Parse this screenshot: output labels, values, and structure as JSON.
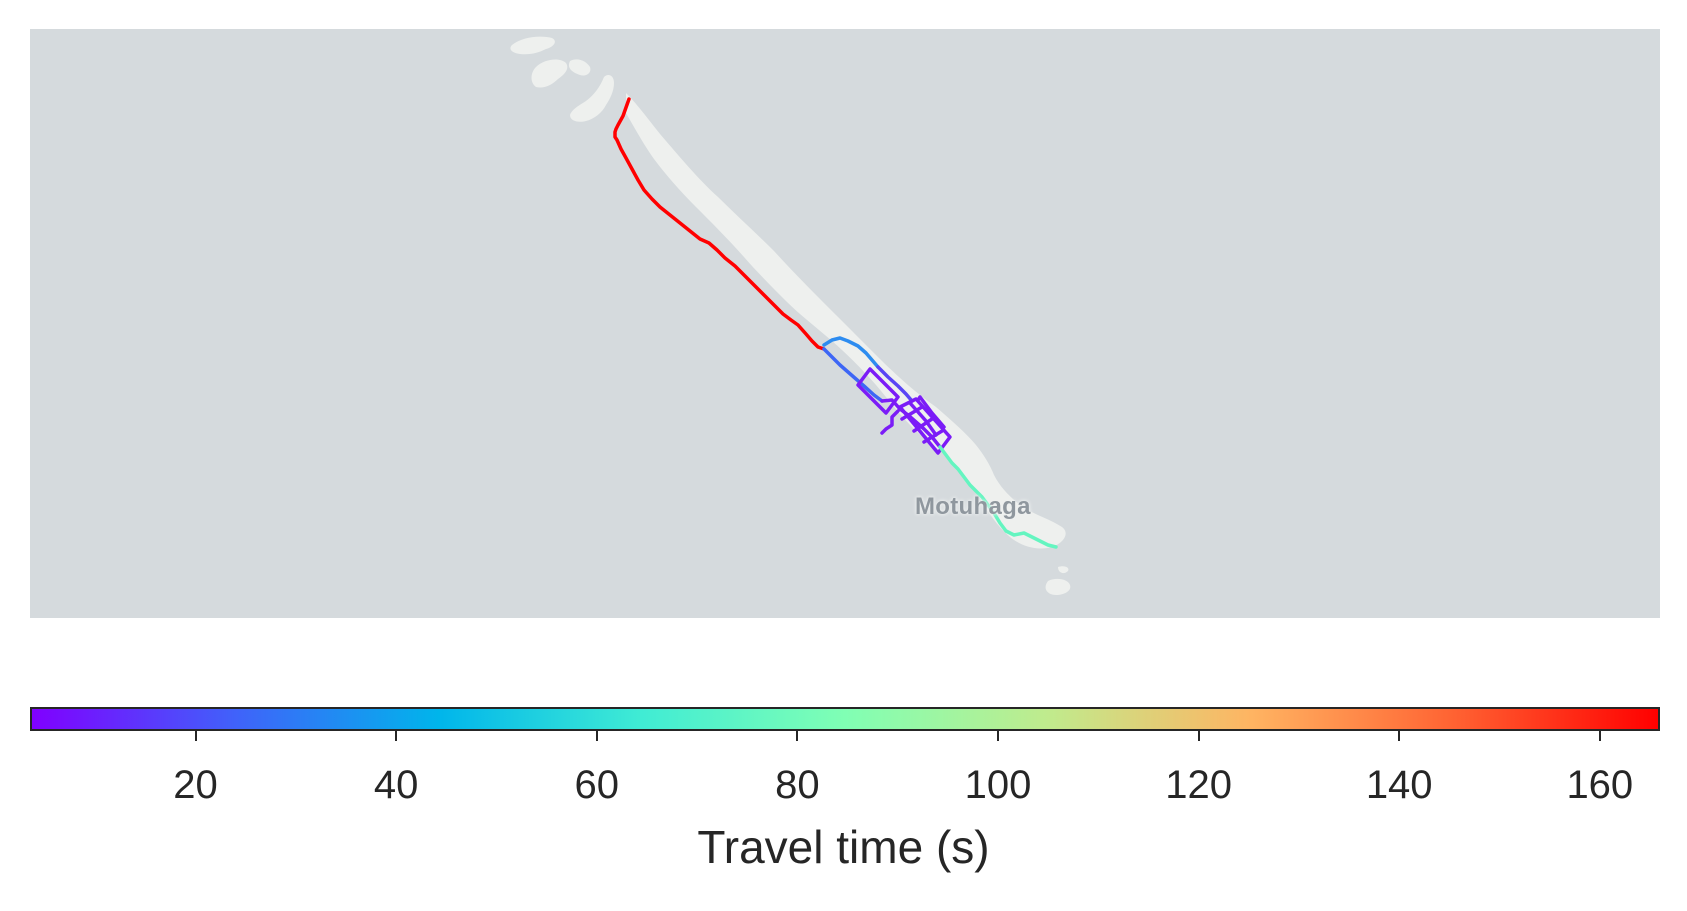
{
  "map": {
    "place_label": "Motuhaga",
    "background_color": "#d5dadd",
    "land_color": "#eef0ee"
  },
  "route_segments": [
    {
      "name": "north-road",
      "travel_time": 165,
      "color": "#ff0000"
    },
    {
      "name": "upper-loop",
      "travel_time": 35,
      "color": "#2d8cf0"
    },
    {
      "name": "central-grid",
      "travel_time": 5,
      "color": "#7b1cf7"
    },
    {
      "name": "south-road",
      "travel_time": 72,
      "color": "#64f5c0"
    }
  ],
  "colorbar": {
    "label": "Travel time (s)",
    "min": 3.5,
    "max": 166,
    "colormap": "rainbow",
    "ticks": [
      20,
      40,
      60,
      80,
      100,
      120,
      140,
      160
    ]
  }
}
